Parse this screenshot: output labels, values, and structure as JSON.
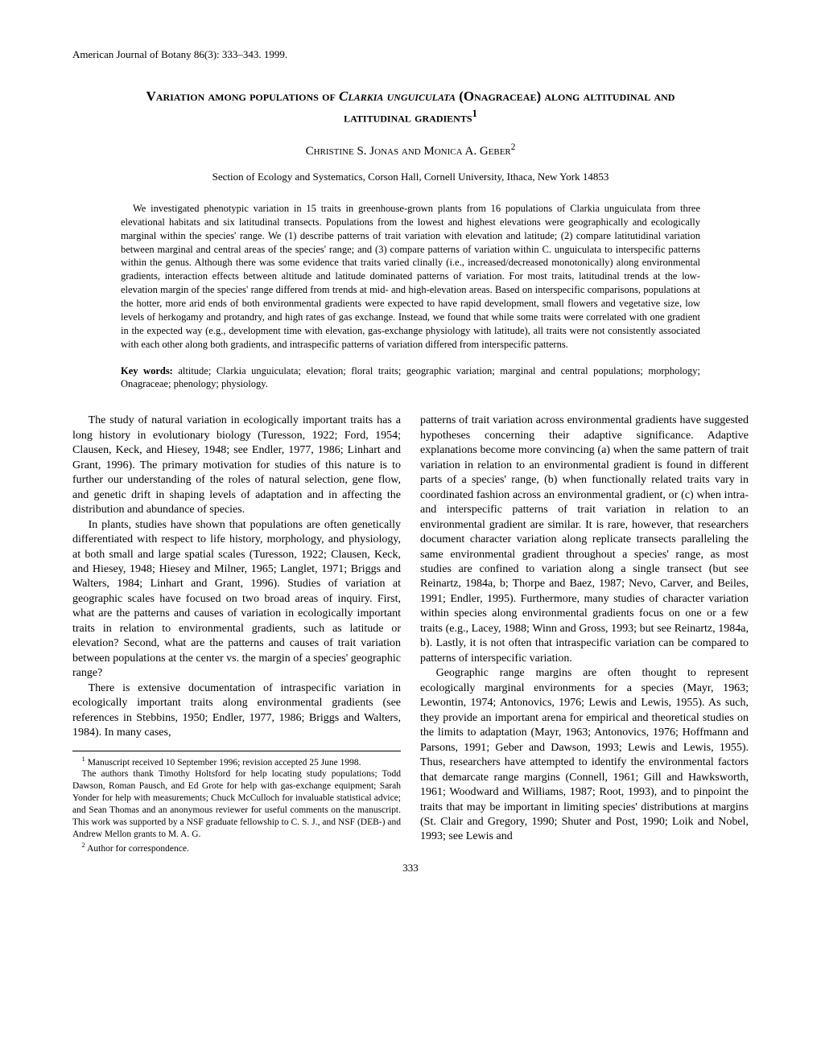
{
  "journal_header": "American Journal of Botany 86(3): 333–343. 1999.",
  "title_line1": "Variation among populations of ",
  "title_italic": "Clarkia unguiculata",
  "title_line2": " (Onagraceae) along altitudinal and latitudinal gradients",
  "title_sup": "1",
  "authors": "Christine S. Jonas and Monica A. Geber",
  "authors_sup": "2",
  "affiliation": "Section of Ecology and Systematics, Corson Hall, Cornell University, Ithaca, New York 14853",
  "abstract": "We investigated phenotypic variation in 15 traits in greenhouse-grown plants from 16 populations of Clarkia unguiculata from three elevational habitats and six latitudinal transects. Populations from the lowest and highest elevations were geographically and ecologically marginal within the species' range. We (1) describe patterns of trait variation with elevation and latitude; (2) compare latitutidinal variation between marginal and central areas of the species' range; and (3) compare patterns of variation within C. unguiculata to interspecific patterns within the genus. Although there was some evidence that traits varied clinally (i.e., increased/decreased monotonically) along environmental gradients, interaction effects between altitude and latitude dominated patterns of variation. For most traits, latitudinal trends at the low-elevation margin of the species' range differed from trends at mid- and high-elevation areas. Based on interspecific comparisons, populations at the hotter, more arid ends of both environmental gradients were expected to have rapid development, small flowers and vegetative size, low levels of herkogamy and protandry, and high rates of gas exchange. Instead, we found that while some traits were correlated with one gradient in the expected way (e.g., development time with elevation, gas-exchange physiology with latitude), all traits were not consistently associated with each other along both gradients, and intraspecific patterns of variation differed from interspecific patterns.",
  "keywords_label": "Key words:",
  "keywords_text": "   altitude; Clarkia unguiculata; elevation; floral traits; geographic variation; marginal and central populations; morphology; Onagraceae; phenology; physiology.",
  "body_p1": "The study of natural variation in ecologically important traits has a long history in evolutionary biology (Turesson, 1922; Ford, 1954; Clausen, Keck, and Hiesey, 1948; see Endler, 1977, 1986; Linhart and Grant, 1996). The primary motivation for studies of this nature is to further our understanding of the roles of natural selection, gene flow, and genetic drift in shaping levels of adaptation and in affecting the distribution and abundance of species.",
  "body_p2": "In plants, studies have shown that populations are often genetically differentiated with respect to life history, morphology, and physiology, at both small and large spatial scales (Turesson, 1922; Clausen, Keck, and Hiesey, 1948; Hiesey and Milner, 1965; Langlet, 1971; Briggs and Walters, 1984; Linhart and Grant, 1996). Studies of variation at geographic scales have focused on two broad areas of inquiry. First, what are the patterns and causes of variation in ecologically important traits in relation to environmental gradients, such as latitude or elevation? Second, what are the patterns and causes of trait variation between populations at the center vs. the margin of a species' geographic range?",
  "body_p3": "There is extensive documentation of intraspecific variation in ecologically important traits along environmental gradients (see references in Stebbins, 1950; Endler, 1977, 1986; Briggs and Walters, 1984). In many cases,",
  "body_p4": "patterns of trait variation across environmental gradients have suggested hypotheses concerning their adaptive significance. Adaptive explanations become more convincing (a) when the same pattern of trait variation in relation to an environmental gradient is found in different parts of a species' range, (b) when functionally related traits vary in coordinated fashion across an environmental gradient, or (c) when intra- and interspecific patterns of trait variation in relation to an environmental gradient are similar. It is rare, however, that researchers document character variation along replicate transects paralleling the same environmental gradient throughout a species' range, as most studies are confined to variation along a single transect (but see Reinartz, 1984a, b; Thorpe and Baez, 1987; Nevo, Carver, and Beiles, 1991; Endler, 1995). Furthermore, many studies of character variation within species along environmental gradients focus on one or a few traits (e.g., Lacey, 1988; Winn and Gross, 1993; but see Reinartz, 1984a, b). Lastly, it is not often that intraspecific variation can be compared to patterns of interspecific variation.",
  "body_p5": "Geographic range margins are often thought to represent ecologically marginal environments for a species (Mayr, 1963; Lewontin, 1974; Antonovics, 1976; Lewis and Lewis, 1955). As such, they provide an important arena for empirical and theoretical studies on the limits to adaptation (Mayr, 1963; Antonovics, 1976; Hoffmann and Parsons, 1991; Geber and Dawson, 1993; Lewis and Lewis, 1955). Thus, researchers have attempted to identify the environmental factors that demarcate range margins (Connell, 1961; Gill and Hawksworth, 1961; Woodward and Williams, 1987; Root, 1993), and to pinpoint the traits that may be important in limiting species' distributions at margins (St. Clair and Gregory, 1990; Shuter and Post, 1990; Loik and Nobel, 1993; see Lewis and",
  "footnote1": "Manuscript received 10 September 1996; revision accepted 25 June 1998.",
  "footnote_ack": "The authors thank Timothy Holtsford for help locating study populations; Todd Dawson, Roman Pausch, and Ed Grote for help with gas-exchange equipment; Sarah Yonder for help with measurements; Chuck McCulloch for invaluable statistical advice; and Sean Thomas and an anonymous reviewer for useful comments on the manuscript. This work was supported by a NSF graduate fellowship to C. S. J., and NSF (DEB-) and Andrew Mellon grants to M. A. G.",
  "footnote2": "Author for correspondence.",
  "page_number": "333"
}
